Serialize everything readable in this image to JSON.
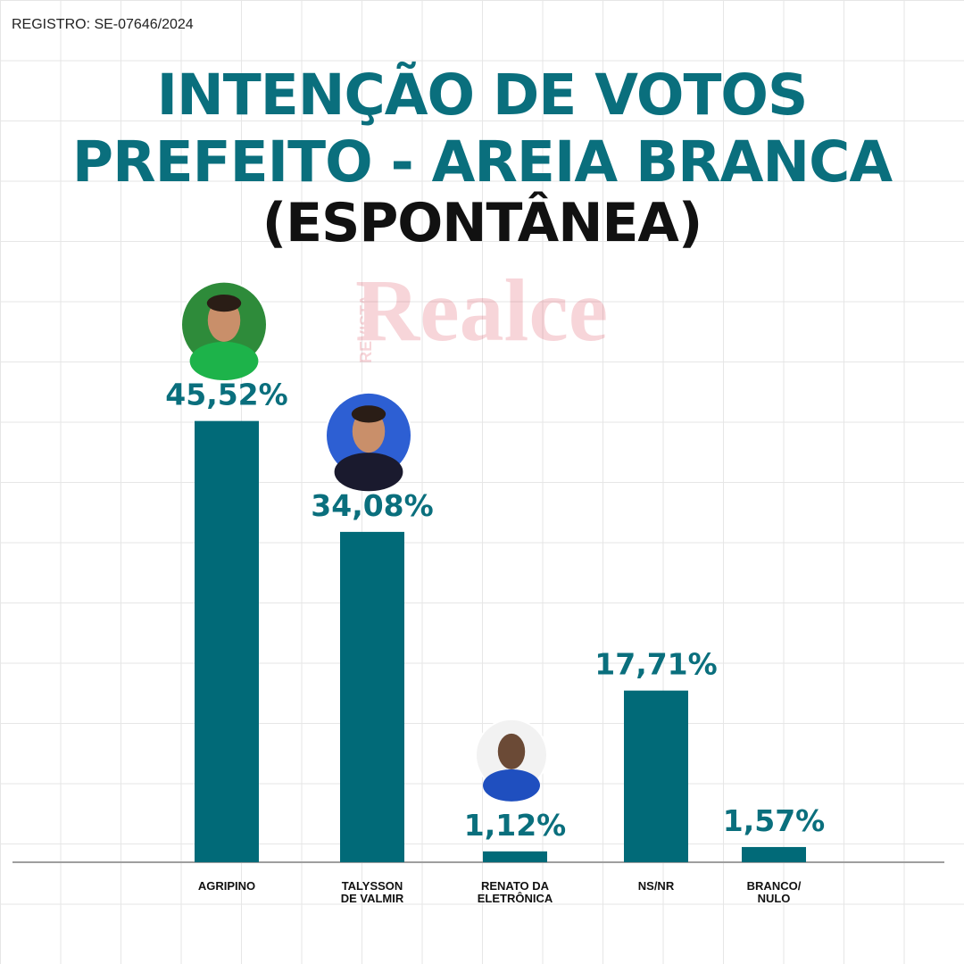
{
  "registro": "REGISTRO: SE-07646/2024",
  "title_line1": "INTENÇÃO DE VOTOS",
  "title_line2": "PREFEITO - AREIA BRANCA",
  "title_line3": "(ESPONTÂNEA)",
  "watermark": {
    "small": "REVISTA",
    "big": "Realce"
  },
  "colors": {
    "bar": "#016a78",
    "title": "#0a6f7d",
    "label": "#0a6f7d",
    "axis": "#9e9e9e"
  },
  "chart_data": {
    "type": "bar",
    "categories": [
      "AGRIPINO",
      "TALYSSON DE VALMIR",
      "RENATO DA ELETRÔNICA",
      "NS/NR",
      "BRANCO/ NULO"
    ],
    "category_lines": [
      [
        "AGRIPINO"
      ],
      [
        "TALYSSON",
        "DE VALMIR"
      ],
      [
        "RENATO DA",
        "ELETRÔNICA"
      ],
      [
        "NS/NR"
      ],
      [
        "BRANCO/",
        "NULO"
      ]
    ],
    "values": [
      45.52,
      34.08,
      1.12,
      17.71,
      1.57
    ],
    "value_labels": [
      "45,52%",
      "34,08%",
      "1,12%",
      "17,71%",
      "1,57%"
    ],
    "candidate_photos": [
      true,
      true,
      true,
      false,
      false
    ],
    "title": "INTENÇÃO DE VOTOS PREFEITO - AREIA BRANCA (ESPONTÂNEA)",
    "xlabel": "",
    "ylabel": "",
    "ylim": [
      0,
      48
    ],
    "grid": true,
    "legend": "none"
  }
}
